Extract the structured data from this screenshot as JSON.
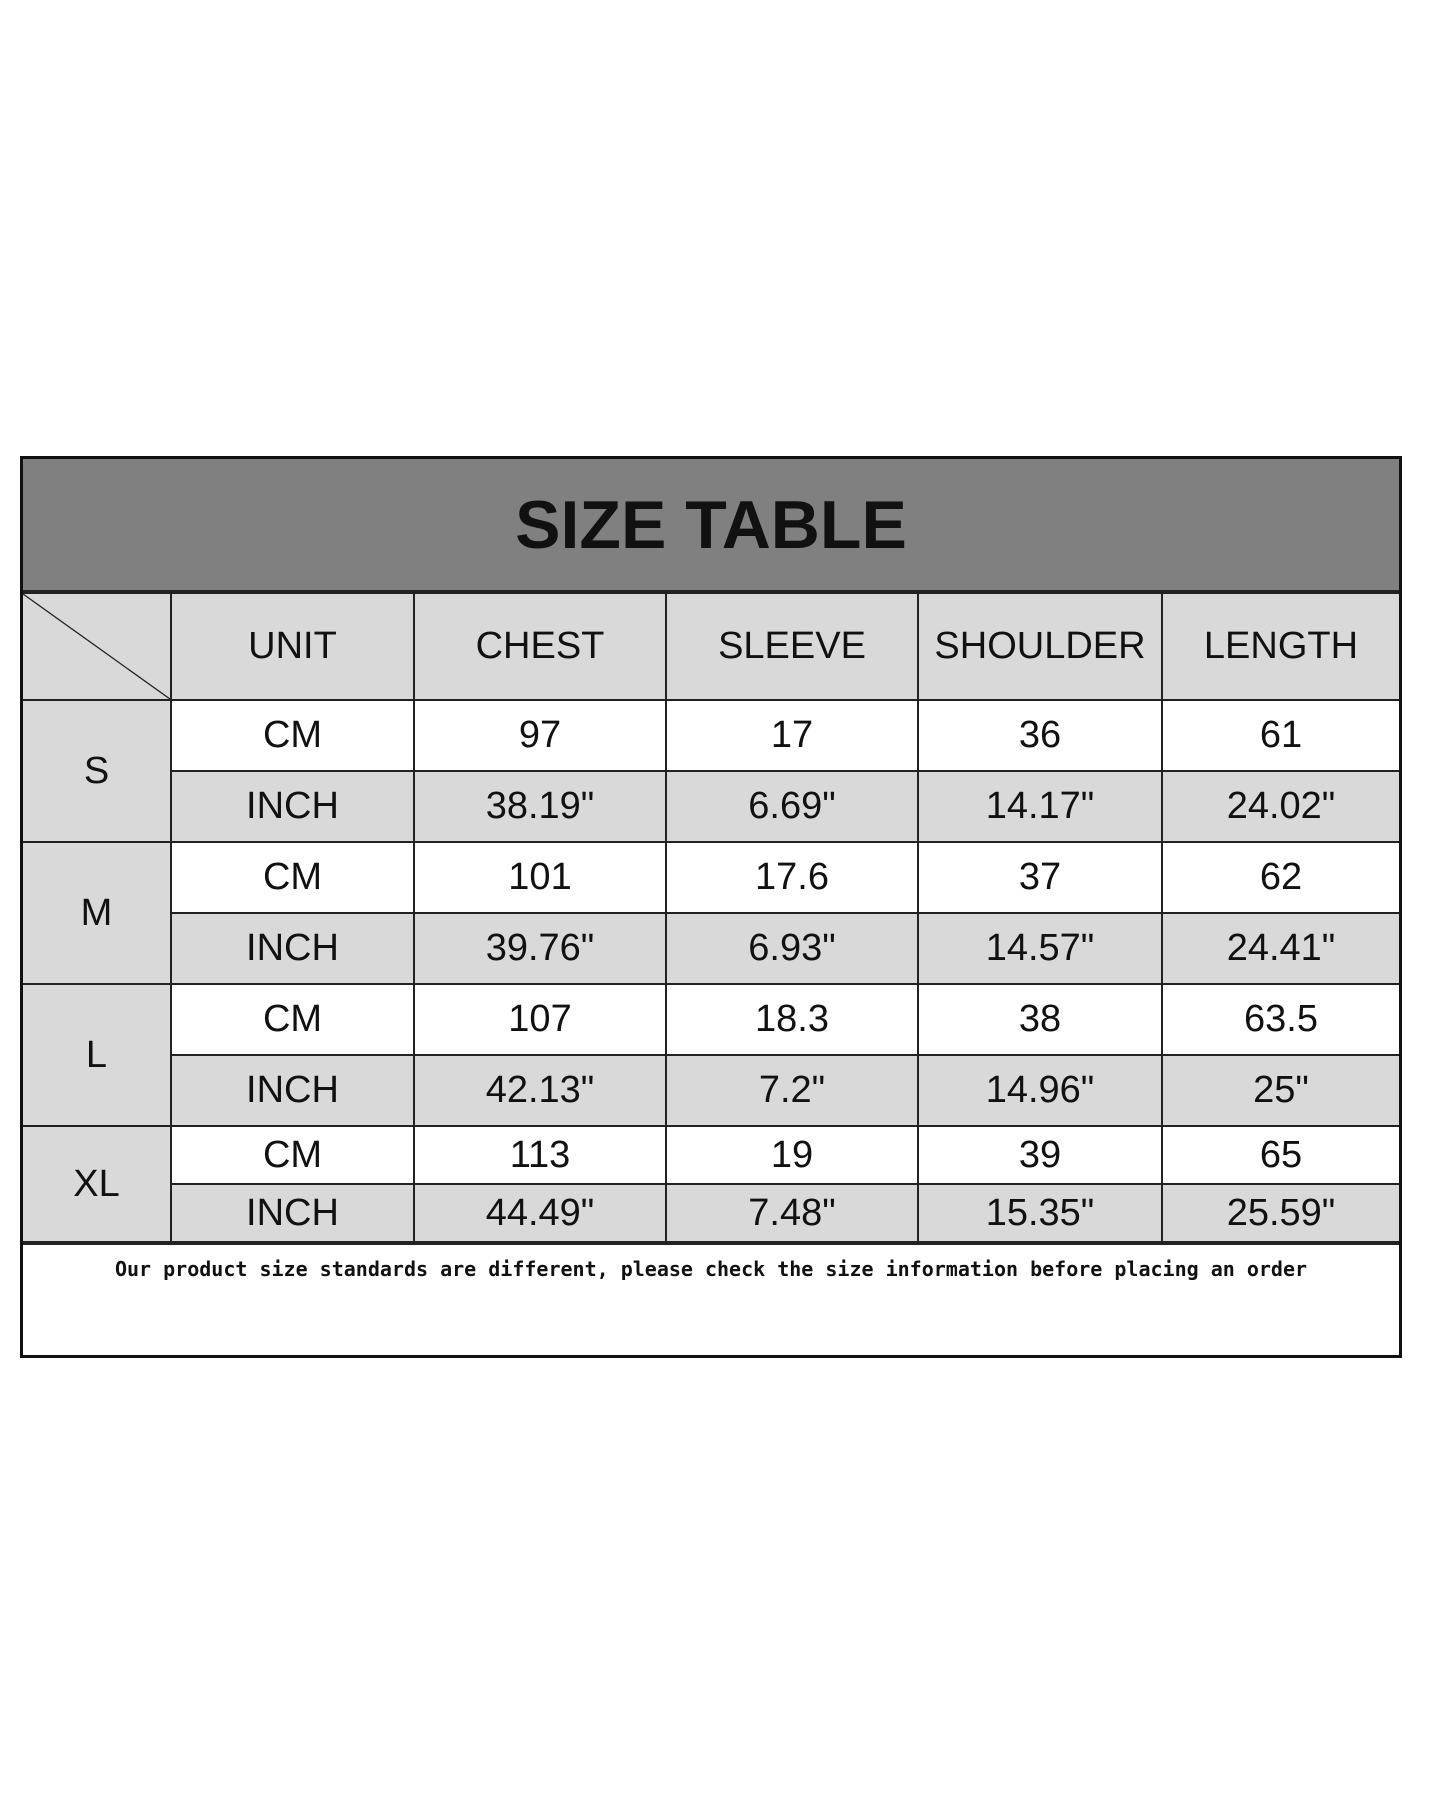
{
  "title": "SIZE TABLE",
  "headers": [
    "UNIT",
    "CHEST",
    "SLEEVE",
    "SHOULDER",
    "LENGTH"
  ],
  "sizes": [
    {
      "size": "S",
      "cm": [
        "CM",
        "97",
        "17",
        "36",
        "61"
      ],
      "inch": [
        "INCH",
        "38.19\"",
        "6.69\"",
        "14.17\"",
        "24.02\""
      ]
    },
    {
      "size": "M",
      "cm": [
        "CM",
        "101",
        "17.6",
        "37",
        "62"
      ],
      "inch": [
        "INCH",
        "39.76\"",
        "6.93\"",
        "14.57\"",
        "24.41\""
      ]
    },
    {
      "size": "L",
      "cm": [
        "CM",
        "107",
        "18.3",
        "38",
        "63.5"
      ],
      "inch": [
        "INCH",
        "42.13\"",
        "7.2\"",
        "14.96\"",
        "25\""
      ]
    },
    {
      "size": "XL",
      "cm": [
        "CM",
        "113",
        "19",
        "39",
        "65"
      ],
      "inch": [
        "INCH",
        "44.49\"",
        "7.48\"",
        "15.35\"",
        "25.59\""
      ]
    }
  ],
  "footer_note": "Our product size standards are different, please check the size information before placing an order",
  "colors": {
    "title_bg": "#808080",
    "cell_gray": "#d9d9d9",
    "border": "#222222"
  }
}
